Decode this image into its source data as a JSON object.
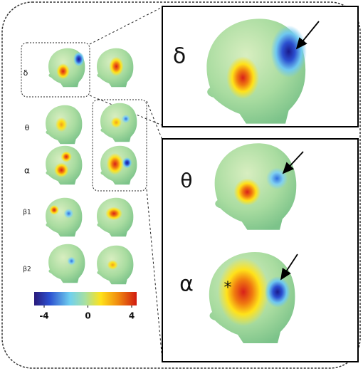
{
  "row_labels": [
    "δ",
    "θ",
    "α",
    "β1",
    "β2"
  ],
  "zoom_labels": [
    "δ",
    "θ",
    "α"
  ],
  "marker": "*",
  "colorbar": {
    "ticks": [
      -4,
      0,
      4
    ]
  }
}
